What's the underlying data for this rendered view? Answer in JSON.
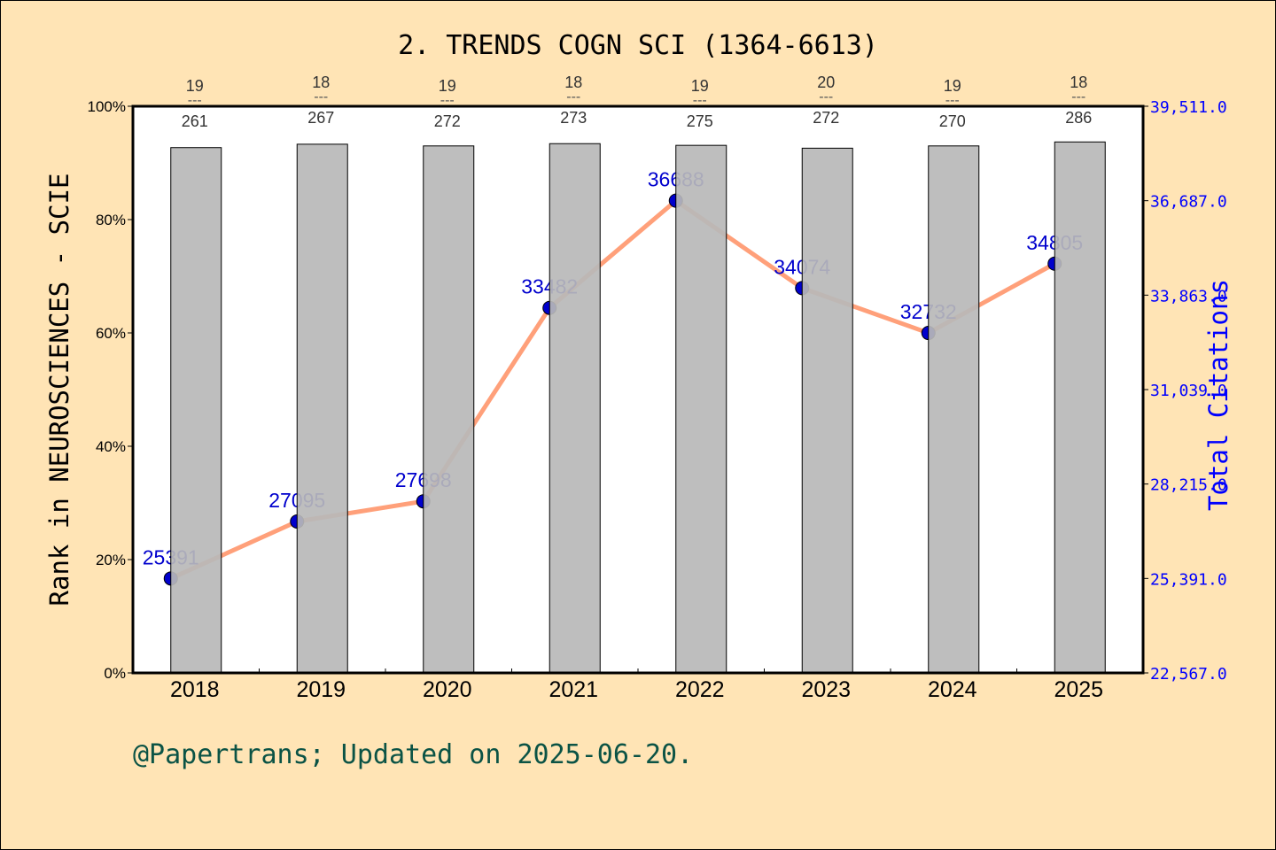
{
  "chart_data": {
    "type": "bar+line",
    "title": "2. TRENDS COGN SCI (1364-6613)",
    "categories": [
      "2018",
      "2019",
      "2020",
      "2021",
      "2022",
      "2023",
      "2024",
      "2025"
    ],
    "series": [
      {
        "name": "Rank percentile in NEUROSCIENCES - SCIE",
        "type": "bar",
        "axis": "left",
        "color": "#b8b8b8",
        "values": [
          92.7,
          93.3,
          93.0,
          93.4,
          93.1,
          92.6,
          93.0,
          93.7
        ]
      },
      {
        "name": "Total Citations",
        "type": "line",
        "axis": "right",
        "color": "#ffa07a",
        "marker_color": "#0000cd",
        "values": [
          25391,
          27095,
          27698,
          33482,
          36688,
          34074,
          32732,
          34805
        ]
      }
    ],
    "rank_annotations": [
      {
        "rank": "19",
        "total": "261"
      },
      {
        "rank": "18",
        "total": "267"
      },
      {
        "rank": "19",
        "total": "272"
      },
      {
        "rank": "18",
        "total": "273"
      },
      {
        "rank": "19",
        "total": "275"
      },
      {
        "rank": "20",
        "total": "272"
      },
      {
        "rank": "19",
        "total": "270"
      },
      {
        "rank": "18",
        "total": "286"
      }
    ],
    "ylabel": "Rank in NEUROSCIENCES - SCIE",
    "ylabel_right": "Total Citations",
    "ylim": [
      0,
      100
    ],
    "ylim_right": [
      22567,
      39511
    ],
    "yticks": [
      "0%",
      "20%",
      "40%",
      "60%",
      "80%",
      "100%"
    ],
    "yticks_right": [
      "22,567.0",
      "25,391.0",
      "28,215.0",
      "31,039.0",
      "33,863.0",
      "36,687.0",
      "39,511.0"
    ],
    "grid": false,
    "legend": "none"
  },
  "title": "2. TRENDS COGN SCI (1364-6613)",
  "footer": "@Papertrans; Updated on 2025-06-20.",
  "ylabel_left": "Rank in NEUROSCIENCES - SCIE",
  "ylabel_right": "Total Citations"
}
